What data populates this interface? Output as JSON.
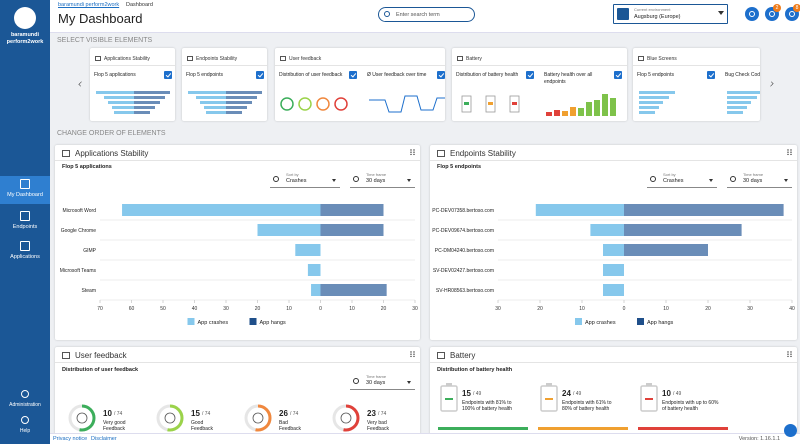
{
  "sidebar": {
    "brand": "baramundi perform2work",
    "nav": [
      "My Dashboard",
      "Endpoints",
      "Applications"
    ],
    "bottom": [
      "Administration",
      "Help"
    ]
  },
  "header": {
    "breadcrumb": [
      "baramundi perform2work",
      "Dashboard"
    ],
    "title": "My Dashboard",
    "search_placeholder": "Enter search term",
    "environment_label": "Current environment",
    "environment": "Augsburg (Europe)",
    "badges": [
      "2",
      "8"
    ]
  },
  "select_section": {
    "title": "SELECT VISIBLE ELEMENTS",
    "cards": [
      {
        "title": "Applications Stability",
        "items": [
          "Flop 5 applications"
        ]
      },
      {
        "title": "Endpoints Stability",
        "items": [
          "Flop 5 endpoints"
        ]
      },
      {
        "title": "User feedback",
        "items": [
          "Distribution of user feedback",
          "Ø User feedback over time"
        ]
      },
      {
        "title": "Battery",
        "items": [
          "Distribution of battery health",
          "Battery health over all endpoints"
        ]
      },
      {
        "title": "Blue Screens",
        "items": [
          "Flop 5 endpoints",
          "Bug Check Code distribution"
        ]
      }
    ]
  },
  "order_section_title": "CHANGE ORDER OF ELEMENTS",
  "chart_data": [
    {
      "type": "barh",
      "title": "Applications Stability",
      "subtitle": "Flop 5 applications",
      "sort_label": "Sort by",
      "sort": "Crashes",
      "time_label": "Time frame",
      "time_frame": "30 days",
      "categories": [
        "Microsoft Word",
        "Google Chrome",
        "GIMP",
        "Microsoft Teams",
        "Steam"
      ],
      "series": [
        {
          "name": "App crashes",
          "color": "#86c8ec",
          "values": [
            -63,
            -20,
            -8,
            -4,
            -3
          ]
        },
        {
          "name": "App hangs",
          "color": "#6a8db8",
          "values": [
            20,
            20,
            0,
            0,
            21
          ]
        }
      ],
      "xlim": [
        -70,
        30
      ],
      "xticks": [
        {
          "value": -70,
          "label": "70"
        },
        {
          "value": -60,
          "label": "60"
        },
        {
          "value": -50,
          "label": "50"
        },
        {
          "value": -40,
          "label": "40"
        },
        {
          "value": -30,
          "label": "30"
        },
        {
          "value": -20,
          "label": "20"
        },
        {
          "value": -10,
          "label": "10"
        },
        0,
        10,
        20,
        30
      ],
      "legend": "bottom"
    },
    {
      "type": "barh",
      "title": "Endpoints Stability",
      "subtitle": "Flop 5 endpoints",
      "sort_label": "Sort by",
      "sort": "Crashes",
      "time_label": "Time frame",
      "time_frame": "30 days",
      "categories": [
        "PC-DEV07358.bertoso.com",
        "PC-DEV09674.bertoso.com",
        "PC-DM04240.bertoso.com",
        "SV-DEV02427.bertoso.com",
        "SV-HR08563.bertoso.com"
      ],
      "series": [
        {
          "name": "App crashes",
          "color": "#86c8ec",
          "values": [
            -21,
            -8,
            -5,
            -5,
            -5
          ]
        },
        {
          "name": "App hangs",
          "color": "#6a8db8",
          "values": [
            38,
            28,
            20,
            0,
            0
          ]
        }
      ],
      "xlim": [
        -30,
        40
      ],
      "xticks": [
        {
          "value": -30,
          "label": "30"
        },
        {
          "value": -20,
          "label": "20"
        },
        {
          "value": -10,
          "label": "10"
        },
        0,
        10,
        20,
        30,
        40
      ],
      "legend": "bottom"
    }
  ],
  "feedback": {
    "title": "User feedback",
    "subtitle": "Distribution of user feedback",
    "time_label": "Time frame",
    "time_frame": "30 days",
    "items": [
      {
        "count": "10",
        "of_total": "/ 74",
        "label": "Very good Feedback",
        "color": "#3cae5b"
      },
      {
        "count": "15",
        "of_total": "/ 74",
        "label": "Good Feedback",
        "color": "#9bd34a"
      },
      {
        "count": "26",
        "of_total": "/ 74",
        "label": "Bad Feedback",
        "color": "#f0883e"
      },
      {
        "count": "23",
        "of_total": "/ 74",
        "label": "Very bad Feedback",
        "color": "#e0413a"
      }
    ]
  },
  "battery": {
    "title": "Battery",
    "subtitle": "Distribution of battery health",
    "items": [
      {
        "count": "15",
        "of_total": "/ 49",
        "label": "Endpoints with 81% to 100% of battery health",
        "color": "#3cae5b"
      },
      {
        "count": "24",
        "of_total": "/ 49",
        "label": "Endpoints with 61% to 80% of battery health",
        "color": "#f0a030"
      },
      {
        "count": "10",
        "of_total": "/ 49",
        "label": "Endpoints with up to 60% of battery health",
        "color": "#e0413a"
      }
    ]
  },
  "footer": {
    "links": [
      "Privacy notice",
      "Disclaimer"
    ],
    "version": "Version: 1.16.1.1"
  }
}
